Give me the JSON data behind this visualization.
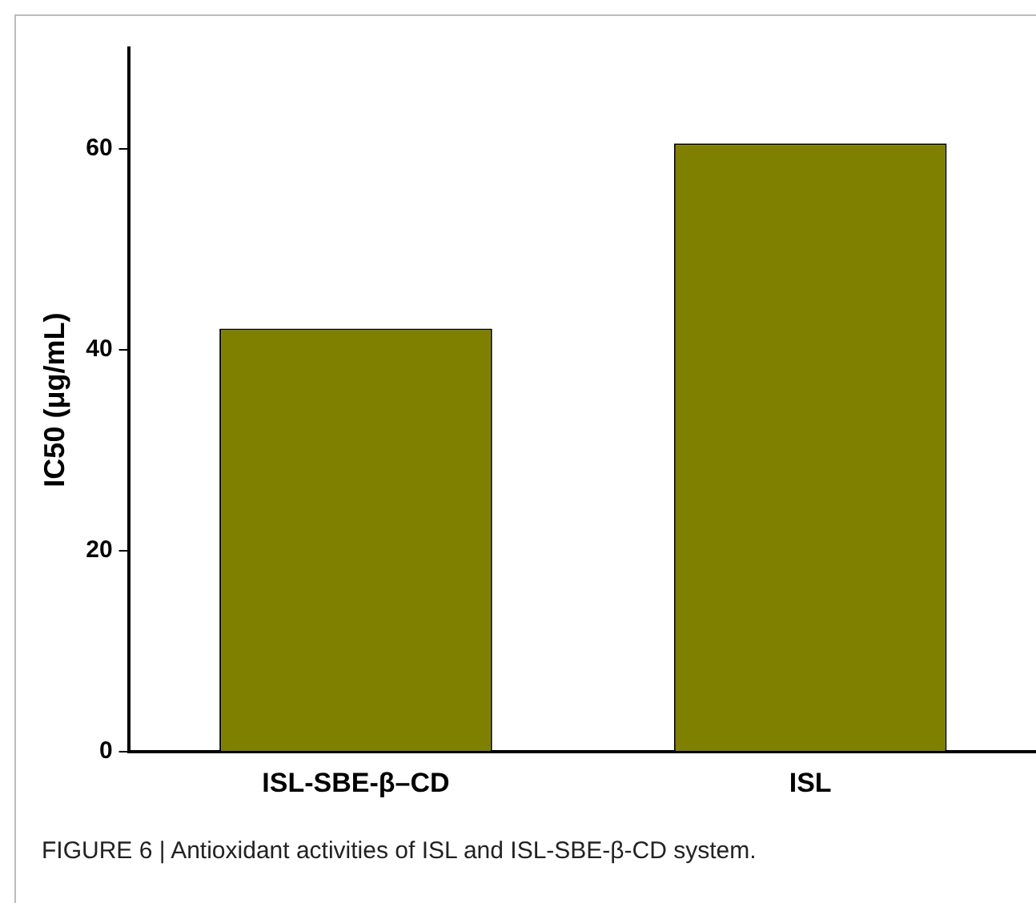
{
  "chart_data": {
    "type": "bar",
    "categories": [
      "ISL-SBE-β–CD",
      "ISL"
    ],
    "values": [
      42.1,
      60.5
    ],
    "color": "#7f7f00",
    "ylabel": "IC50 (μg/mL)",
    "ylim": [
      0,
      70
    ],
    "yticks": [
      0,
      20,
      40,
      60
    ],
    "grid": false,
    "legend": false,
    "annotations": [
      "FIGURE 6 | Antioxidant activities of ISL and ISL-SBE-β-CD system."
    ]
  }
}
